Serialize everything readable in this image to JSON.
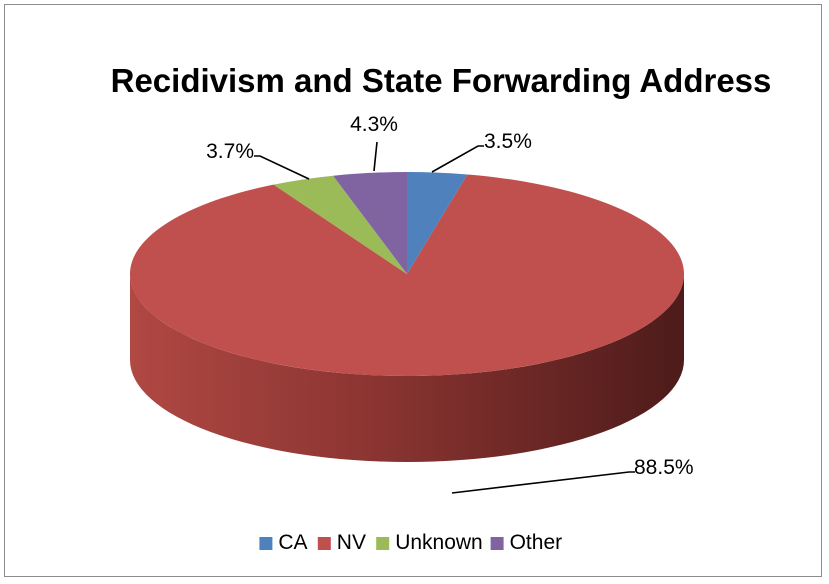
{
  "chart_data": {
    "type": "pie",
    "title": "Recidivism and State Forwarding Address",
    "legend_position": "bottom",
    "slices": [
      {
        "label": "CA",
        "value": 3.5,
        "display": "3.5%",
        "color": "#4f81bd"
      },
      {
        "label": "NV",
        "value": 88.5,
        "display": "88.5%",
        "color": "#c0504d"
      },
      {
        "label": "Unknown",
        "value": 3.7,
        "display": "3.7%",
        "color": "#9bbb59"
      },
      {
        "label": "Other",
        "value": 4.3,
        "display": "4.3%",
        "color": "#8064a2"
      }
    ]
  }
}
